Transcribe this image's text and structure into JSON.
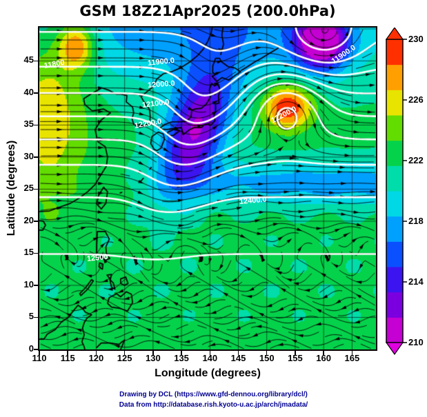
{
  "title": "GSM 18Z21Apr2025 (200.0hPa)",
  "x_axis": {
    "label": "Longitude (degrees)",
    "ticks": [
      "110",
      "115",
      "120",
      "125",
      "130",
      "135",
      "140",
      "145",
      "150",
      "155",
      "160",
      "165"
    ]
  },
  "y_axis": {
    "label": "Latitude (degrees)",
    "ticks": [
      "0",
      "5",
      "10",
      "15",
      "20",
      "25",
      "30",
      "35",
      "40",
      "45"
    ]
  },
  "colorbar": {
    "min": 210,
    "max": 230,
    "tick_labels": [
      "230",
      "226",
      "222",
      "218",
      "214",
      "210"
    ],
    "band_colors_bottom_to_top": [
      "#c400d2",
      "#7a00e0",
      "#3c14f0",
      "#0a50ff",
      "#00a0ff",
      "#00d8e6",
      "#00dcaa",
      "#05d24b",
      "#63dc00",
      "#e8e400",
      "#ffa000",
      "#ff3000"
    ],
    "under_color": "#e000e0",
    "over_color": "#ff3000"
  },
  "contour_labels": [
    {
      "text": "11800"
    },
    {
      "text": "11900.0"
    },
    {
      "text": "12000.0"
    },
    {
      "text": "12100.0"
    },
    {
      "text": "12200.0"
    },
    {
      "text": "11900.0"
    },
    {
      "text": "12200.0"
    },
    {
      "text": "12400.0"
    },
    {
      "text": "12500"
    }
  ],
  "footer": {
    "credit_drawing": "Drawing by DCL (https://www.gfd-dennou.org/library/dcl/)",
    "credit_data": "Data from http://database.rish.kyoto-u.ac.jp/arch/jmadata/"
  },
  "chart_data": {
    "type": "heatmap",
    "title": "GSM 18Z21Apr2025 (200.0hPa)",
    "xlabel": "Longitude (degrees)",
    "ylabel": "Latitude (degrees)",
    "xlim": [
      110,
      169
    ],
    "ylim": [
      0,
      50
    ],
    "grid": true,
    "grid_interval_deg": 5,
    "shaded_field": "200 hPa temperature (K), color shaded",
    "colorbar_range": [
      210,
      230
    ],
    "colorbar_ticks": [
      210,
      214,
      218,
      222,
      226,
      230
    ],
    "lon": [
      110,
      115,
      120,
      125,
      130,
      135,
      140,
      145,
      150,
      155,
      160,
      165
    ],
    "lat": [
      50,
      45,
      40,
      35,
      30,
      25,
      20,
      15,
      10,
      5,
      0
    ],
    "values": [
      [
        220,
        225,
        224,
        221,
        217,
        214,
        213,
        213,
        215,
        211,
        210,
        214
      ],
      [
        224,
        226,
        222,
        221,
        217,
        215,
        214,
        213,
        216,
        212,
        210,
        214
      ],
      [
        224,
        223,
        221,
        218,
        215,
        213,
        212,
        217,
        225,
        229,
        217,
        214
      ],
      [
        223,
        222,
        219,
        217,
        214,
        212,
        210,
        215,
        226,
        228,
        218,
        216
      ],
      [
        222,
        221,
        219,
        217,
        215,
        212,
        211,
        214,
        217,
        217,
        216,
        215
      ],
      [
        222,
        221,
        220,
        219,
        218,
        216,
        215,
        215,
        216,
        215,
        215,
        214
      ],
      [
        221,
        221,
        221,
        220,
        219,
        219,
        218,
        218,
        218,
        217,
        217,
        217
      ],
      [
        221,
        221,
        221,
        221,
        220,
        220,
        220,
        220,
        219,
        219,
        219,
        220
      ],
      [
        221,
        221,
        221,
        221,
        221,
        221,
        220,
        220,
        220,
        220,
        220,
        221
      ],
      [
        221,
        221,
        221,
        221,
        221,
        221,
        221,
        220,
        220,
        221,
        221,
        221
      ],
      [
        221,
        221,
        220,
        221,
        221,
        221,
        221,
        221,
        220,
        220,
        221,
        221
      ]
    ],
    "contour_field": "200 hPa geopotential height (m), white labeled contours",
    "contour_levels": [
      11700,
      11800,
      11900,
      12000,
      12100,
      12200,
      12300,
      12400,
      12500
    ],
    "contour_label_values": [
      "11800",
      "11900.0",
      "12000.0",
      "12100.0",
      "12200.0",
      "12400.0",
      "12500"
    ],
    "overlays": [
      "white labeled geopotential height contours",
      "black wind streamlines with arrowheads",
      "black coastlines (East Asia, Japan, Philippines, Borneo)",
      "5-degree latitude/longitude grid"
    ],
    "features": [
      {
        "name": "warm anticyclone (red core)",
        "lon": 153.5,
        "lat": 38,
        "temp_K": 230
      },
      {
        "name": "cold trough (purple core)",
        "lon": 138,
        "lat": 33,
        "temp_K": 211
      },
      {
        "name": "cold low (magenta core)",
        "lon": 160,
        "lat": 48,
        "temp_K": 210
      },
      {
        "name": "warm band along west edge",
        "lon": 114,
        "lat": 40,
        "temp_K": 225
      },
      {
        "name": "warm patch northwest",
        "lon": 117,
        "lat": 47,
        "temp_K": 227
      },
      {
        "name": "cool cyan band",
        "lon": 150,
        "lat": 26,
        "temp_K": 217
      }
    ]
  }
}
